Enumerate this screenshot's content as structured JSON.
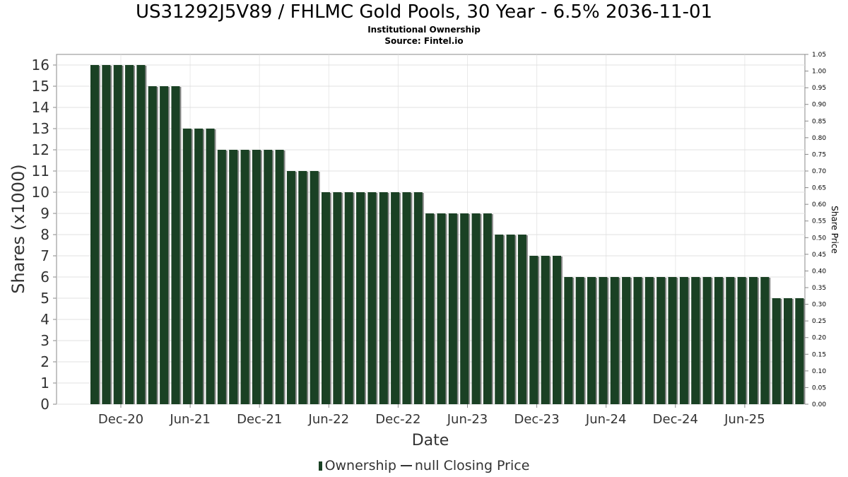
{
  "title": "US31292J5V89 / FHLMC Gold Pools, 30 Year - 6.5% 2036-11-01",
  "subtitle1": "Institutional Ownership",
  "subtitle2": "Source: Fintel.io",
  "legend": {
    "ownership_label": "Ownership",
    "price_label": "null Closing Price"
  },
  "colors": {
    "bar": "#1a4124",
    "bar_shadow": "#8a8a8a",
    "grid": "#e0e0e0",
    "axis": "#888888"
  },
  "chart_data": {
    "type": "bar",
    "xlabel": "Date",
    "ylabel": "Shares (x1000)",
    "y2label": "Share Price",
    "ylim": [
      0,
      16.5
    ],
    "y2lim": [
      0,
      1.05
    ],
    "yticks": [
      "0",
      "1",
      "2",
      "3",
      "4",
      "5",
      "6",
      "7",
      "8",
      "9",
      "10",
      "11",
      "12",
      "13",
      "14",
      "15",
      "16"
    ],
    "y2ticks": [
      "0.00",
      "0.05",
      "0.10",
      "0.15",
      "0.20",
      "0.25",
      "0.30",
      "0.35",
      "0.40",
      "0.45",
      "0.50",
      "0.55",
      "0.60",
      "0.65",
      "0.70",
      "0.75",
      "0.80",
      "0.85",
      "0.90",
      "0.95",
      "1.00",
      "1.05"
    ],
    "xticks": [
      "Dec-20",
      "Jun-21",
      "Dec-21",
      "Jun-22",
      "Dec-22",
      "Jun-23",
      "Dec-23",
      "Jun-24",
      "Dec-24",
      "Jun-25"
    ],
    "grid": true,
    "legend_position": "bottom",
    "series": [
      {
        "name": "Ownership",
        "values": [
          16,
          16,
          16,
          16,
          16,
          15,
          15,
          15,
          13,
          13,
          13,
          12,
          12,
          12,
          12,
          12,
          12,
          11,
          11,
          11,
          10,
          10,
          10,
          10,
          10,
          10,
          10,
          10,
          10,
          9,
          9,
          9,
          9,
          9,
          9,
          8,
          8,
          8,
          7,
          7,
          7,
          6,
          6,
          6,
          6,
          6,
          6,
          6,
          6,
          6,
          6,
          6,
          6,
          6,
          6,
          6,
          6,
          6,
          6,
          5,
          5,
          5
        ]
      }
    ]
  }
}
